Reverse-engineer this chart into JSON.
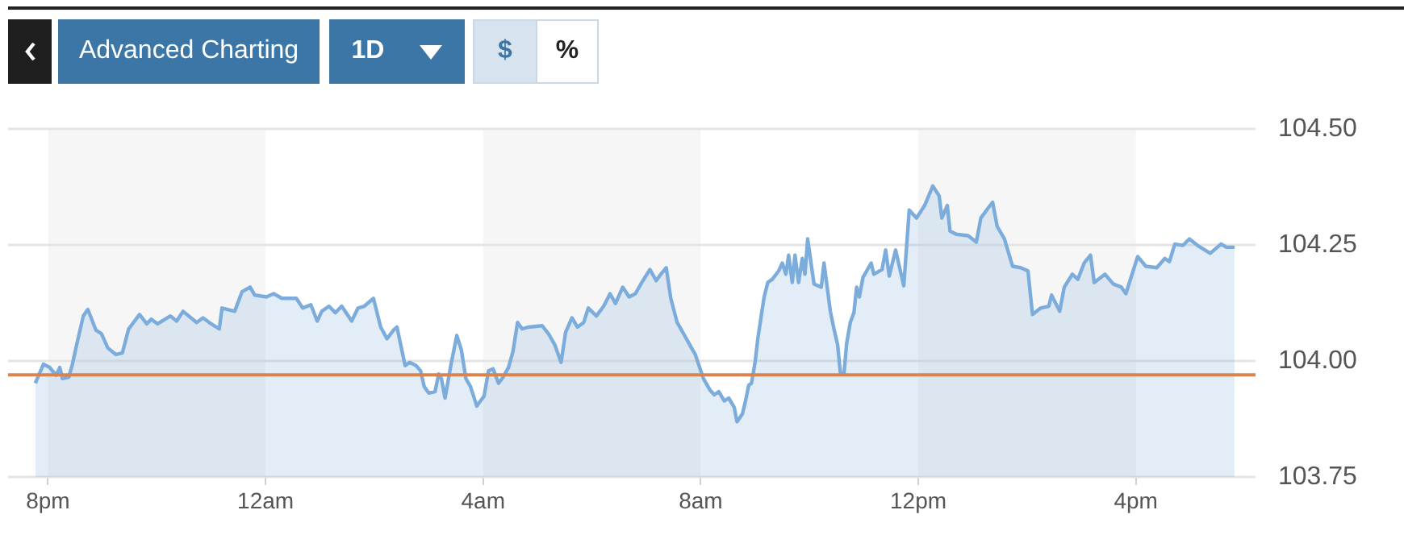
{
  "chart_data": {
    "type": "area",
    "annotations": [
      "Advanced Charting",
      "1D",
      "$",
      "%"
    ],
    "x": [
      "--01-01T19:46",
      "--01-01T19:55",
      "--01-01T20:02",
      "--01-01T20:09",
      "--01-01T20:13",
      "--01-01T20:16",
      "--01-01T20:23",
      "--01-01T20:27",
      "--01-01T20:32",
      "--01-01T20:39",
      "--01-01T20:44",
      "--01-01T20:53",
      "--01-01T20:59",
      "--01-01T21:06",
      "--01-01T21:15",
      "--01-01T21:22",
      "--01-01T21:29",
      "--01-01T21:41",
      "--01-01T21:49",
      "--01-01T21:54",
      "--01-01T22:01",
      "--01-01T22:15",
      "--01-01T22:22",
      "--01-01T22:29",
      "--01-01T22:44",
      "--01-01T22:51",
      "--01-01T23:00",
      "--01-01T23:09",
      "--01-01T23:12",
      "--01-01T23:26",
      "--01-01T23:34",
      "--01-01T23:43",
      "--01-01T23:48",
      "--01-02T00:01",
      "--01-02T00:09",
      "--01-02T00:18",
      "--01-02T00:34",
      "--01-02T00:41",
      "--01-02T00:50",
      "--01-02T00:57",
      "--01-02T01:02",
      "--01-02T01:10",
      "--01-02T01:17",
      "--01-02T01:24",
      "--01-02T01:35",
      "--01-02T01:42",
      "--01-02T01:49",
      "--01-02T01:59",
      "--01-02T02:07",
      "--01-02T02:14",
      "--01-02T02:21",
      "--01-02T02:25",
      "--01-02T02:28",
      "--01-02T02:34",
      "--01-02T02:39",
      "--01-02T02:46",
      "--01-02T02:51",
      "--01-02T02:55",
      "--01-02T03:00",
      "--01-02T03:07",
      "--01-02T03:11",
      "--01-02T03:14",
      "--01-02T03:18",
      "--01-02T03:25",
      "--01-02T03:31",
      "--01-02T03:36",
      "--01-02T03:41",
      "--01-02T03:46",
      "--01-02T03:53",
      "--01-02T04:01",
      "--01-02T04:06",
      "--01-02T04:11",
      "--01-02T04:17",
      "--01-02T04:22",
      "--01-02T04:28",
      "--01-02T04:33",
      "--01-02T04:38",
      "--01-02T04:43",
      "--01-02T04:50",
      "--01-02T05:05",
      "--01-02T05:12",
      "--01-02T05:19",
      "--01-02T05:26",
      "--01-02T05:31",
      "--01-02T05:38",
      "--01-02T05:44",
      "--01-02T05:51",
      "--01-02T05:56",
      "--01-02T06:05",
      "--01-02T06:13",
      "--01-02T06:20",
      "--01-02T06:26",
      "--01-02T06:34",
      "--01-02T06:41",
      "--01-02T06:48",
      "--01-02T06:55",
      "--01-02T07:04",
      "--01-02T07:11",
      "--01-02T07:16",
      "--01-02T07:22",
      "--01-02T07:27",
      "--01-02T07:34",
      "--01-02T07:41",
      "--01-02T07:49",
      "--01-02T07:54",
      "--01-02T08:03",
      "--01-02T08:10",
      "--01-02T08:15",
      "--01-02T08:20",
      "--01-02T08:26",
      "--01-02T08:31",
      "--01-02T08:37",
      "--01-02T08:40",
      "--01-02T08:46",
      "--01-02T08:49",
      "--01-02T08:53",
      "--01-02T08:56",
      "--01-02T09:00",
      "--01-02T09:03",
      "--01-02T09:07",
      "--01-02T09:10",
      "--01-02T09:14",
      "--01-02T09:19",
      "--01-02T09:26",
      "--01-02T09:30",
      "--01-02T09:34",
      "--01-02T09:37",
      "--01-02T09:41",
      "--01-02T09:44",
      "--01-02T09:48",
      "--01-02T09:52",
      "--01-02T09:55",
      "--01-02T09:58",
      "--01-02T10:02",
      "--01-02T10:05",
      "--01-02T10:13",
      "--01-02T10:16",
      "--01-02T10:20",
      "--01-02T10:23",
      "--01-02T10:27",
      "--01-02T10:31",
      "--01-02T10:34",
      "--01-02T10:38",
      "--01-02T10:41",
      "--01-02T10:45",
      "--01-02T10:49",
      "--01-02T10:52",
      "--01-02T10:55",
      "--01-02T10:59",
      "--01-02T11:08",
      "--01-02T11:11",
      "--01-02T11:20",
      "--01-02T11:24",
      "--01-02T11:28",
      "--01-02T11:35",
      "--01-02T11:44",
      "--01-02T11:50",
      "--01-02T11:58",
      "--01-02T12:07",
      "--01-02T12:16",
      "--01-02T12:23",
      "--01-02T12:26",
      "--01-02T12:32",
      "--01-02T12:35",
      "--01-02T12:42",
      "--01-02T12:55",
      "--01-02T13:04",
      "--01-02T13:09",
      "--01-02T13:18",
      "--01-02T13:22",
      "--01-02T13:27",
      "--01-02T13:35",
      "--01-02T13:44",
      "--01-02T13:53",
      "--01-02T14:01",
      "--01-02T14:06",
      "--01-02T14:15",
      "--01-02T14:24",
      "--01-02T14:27",
      "--01-02T14:36",
      "--01-02T14:41",
      "--01-02T14:50",
      "--01-02T14:56",
      "--01-02T15:03",
      "--01-02T15:10",
      "--01-02T15:14",
      "--01-02T15:26",
      "--01-02T15:35",
      "--01-02T15:44",
      "--01-02T15:49",
      "--01-02T16:02",
      "--01-02T16:11",
      "--01-02T16:23",
      "--01-02T16:32",
      "--01-02T16:37",
      "--01-02T16:43",
      "--01-02T16:52",
      "--01-02T16:59",
      "--01-02T17:08",
      "--01-02T17:22",
      "--01-02T17:34",
      "--01-02T17:40",
      "--01-02T17:49"
    ],
    "series": [
      {
        "color": "#7cacdc",
        "values": [
          103.952,
          103.993,
          103.986,
          103.969,
          103.986,
          103.962,
          103.965,
          103.993,
          104.038,
          104.097,
          104.111,
          104.066,
          104.059,
          104.028,
          104.014,
          104.017,
          104.069,
          104.1,
          104.08,
          104.09,
          104.08,
          104.097,
          104.086,
          104.107,
          104.083,
          104.093,
          104.08,
          104.069,
          104.114,
          104.107,
          104.149,
          104.159,
          104.142,
          104.138,
          104.145,
          104.135,
          104.135,
          104.114,
          104.121,
          104.086,
          104.107,
          104.118,
          104.104,
          104.118,
          104.086,
          104.114,
          104.118,
          104.135,
          104.073,
          104.048,
          104.066,
          104.073,
          104.045,
          103.99,
          103.997,
          103.99,
          103.979,
          103.945,
          103.931,
          103.934,
          103.972,
          103.962,
          103.92,
          103.997,
          104.055,
          104.024,
          103.962,
          103.945,
          103.903,
          103.924,
          103.979,
          103.983,
          103.952,
          103.965,
          103.986,
          104.021,
          104.083,
          104.069,
          104.073,
          104.076,
          104.059,
          104.035,
          103.997,
          104.062,
          104.093,
          104.073,
          104.083,
          104.114,
          104.097,
          104.118,
          104.145,
          104.124,
          104.159,
          104.138,
          104.145,
          104.169,
          104.197,
          104.173,
          104.187,
          104.201,
          104.135,
          104.083,
          104.059,
          104.031,
          104.014,
          103.962,
          103.938,
          103.927,
          103.934,
          103.914,
          103.92,
          103.9,
          103.869,
          103.886,
          103.91,
          103.948,
          103.952,
          103.997,
          104.048,
          104.1,
          104.138,
          104.169,
          104.176,
          104.194,
          104.211,
          104.187,
          104.228,
          104.169,
          104.228,
          104.169,
          104.221,
          104.187,
          104.263,
          104.207,
          104.166,
          104.159,
          104.211,
          104.152,
          104.107,
          104.069,
          104.035,
          103.976,
          103.972,
          104.038,
          104.083,
          104.104,
          104.159,
          104.138,
          104.18,
          104.211,
          104.187,
          104.197,
          104.239,
          104.183,
          104.239,
          104.162,
          104.325,
          104.308,
          104.335,
          104.377,
          104.356,
          104.308,
          104.335,
          104.28,
          104.273,
          104.27,
          104.256,
          104.308,
          104.332,
          104.342,
          104.29,
          104.263,
          104.204,
          104.201,
          104.194,
          104.1,
          104.114,
          104.118,
          104.142,
          104.107,
          104.159,
          104.187,
          104.176,
          104.211,
          104.228,
          104.169,
          104.187,
          104.166,
          104.159,
          104.145,
          104.225,
          104.204,
          104.201,
          104.221,
          104.214,
          104.252,
          104.249,
          104.263,
          104.249,
          104.232,
          104.252,
          104.245,
          104.245
        ]
      }
    ],
    "xlim": [
      "--01-01T19:16",
      "--01-02T18:12"
    ],
    "xticks": [
      {
        "value": "--01-01T20:00",
        "label": "8pm"
      },
      {
        "value": "--01-02T00:00",
        "label": "12am"
      },
      {
        "value": "--01-02T04:00",
        "label": "4am"
      },
      {
        "value": "--01-02T08:00",
        "label": "8am"
      },
      {
        "value": "--01-02T12:00",
        "label": "12pm"
      },
      {
        "value": "--01-02T16:00",
        "label": "4pm"
      }
    ],
    "ylim": [
      103.75,
      104.5
    ],
    "yticks": [
      {
        "value": 103.75,
        "label": "103.75"
      },
      {
        "value": 104,
        "label": "104.00"
      },
      {
        "value": 104.25,
        "label": "104.25"
      },
      {
        "value": 104.5,
        "label": "104.50"
      }
    ],
    "ref_lines": [
      {
        "axis": "y",
        "value": 103.97,
        "color": "#d9834f"
      }
    ],
    "bands": [
      {
        "axis": "x",
        "from": "--01-01T20:00",
        "to": "--01-02T00:00",
        "color": "#f6f6f6"
      },
      {
        "axis": "x",
        "from": "--01-02T04:00",
        "to": "--01-02T08:00",
        "color": "#f6f6f6"
      },
      {
        "axis": "x",
        "from": "--01-02T12:00",
        "to": "--01-02T16:00",
        "color": "#f6f6f6"
      }
    ],
    "grid": "y",
    "legend": false
  }
}
